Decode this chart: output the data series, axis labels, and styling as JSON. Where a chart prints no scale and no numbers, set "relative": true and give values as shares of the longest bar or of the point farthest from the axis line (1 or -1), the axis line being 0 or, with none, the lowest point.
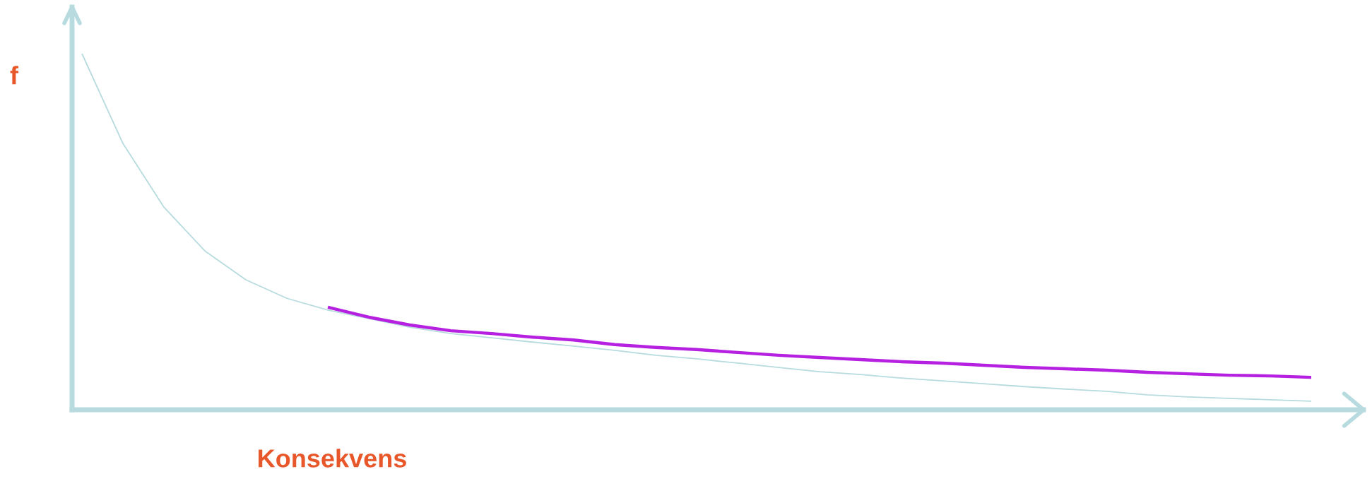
{
  "chart_data": {
    "type": "line",
    "relative": true,
    "xlabel": "Konsekvens",
    "ylabel": "f",
    "marker": "none",
    "line_style": "solid",
    "categories": [
      null,
      null,
      null,
      null,
      null,
      null,
      null,
      null,
      null,
      null,
      null,
      null,
      null,
      null,
      null,
      null,
      null,
      null,
      null,
      null,
      null,
      null,
      null,
      null,
      null,
      null,
      null,
      null,
      null,
      null,
      null
    ],
    "series": [
      {
        "color": "#b7dbdf",
        "values": [
          1.0,
          0.748,
          0.569,
          0.446,
          0.365,
          0.313,
          0.28,
          0.256,
          0.232,
          0.214,
          0.202,
          0.19,
          0.179,
          0.167,
          0.153,
          0.143,
          0.131,
          0.119,
          0.107,
          0.099,
          0.089,
          0.081,
          0.073,
          0.065,
          0.058,
          0.052,
          0.042,
          0.036,
          0.032,
          0.028,
          0.024
        ]
      },
      {
        "color": "#b620e0",
        "values": [
          null,
          null,
          null,
          null,
          null,
          null,
          0.288,
          0.26,
          0.238,
          0.222,
          0.214,
          0.204,
          0.196,
          0.183,
          0.175,
          0.169,
          0.161,
          0.153,
          0.147,
          0.141,
          0.135,
          0.131,
          0.125,
          0.119,
          0.115,
          0.111,
          0.105,
          0.101,
          0.097,
          0.095,
          0.091
        ]
      }
    ]
  }
}
